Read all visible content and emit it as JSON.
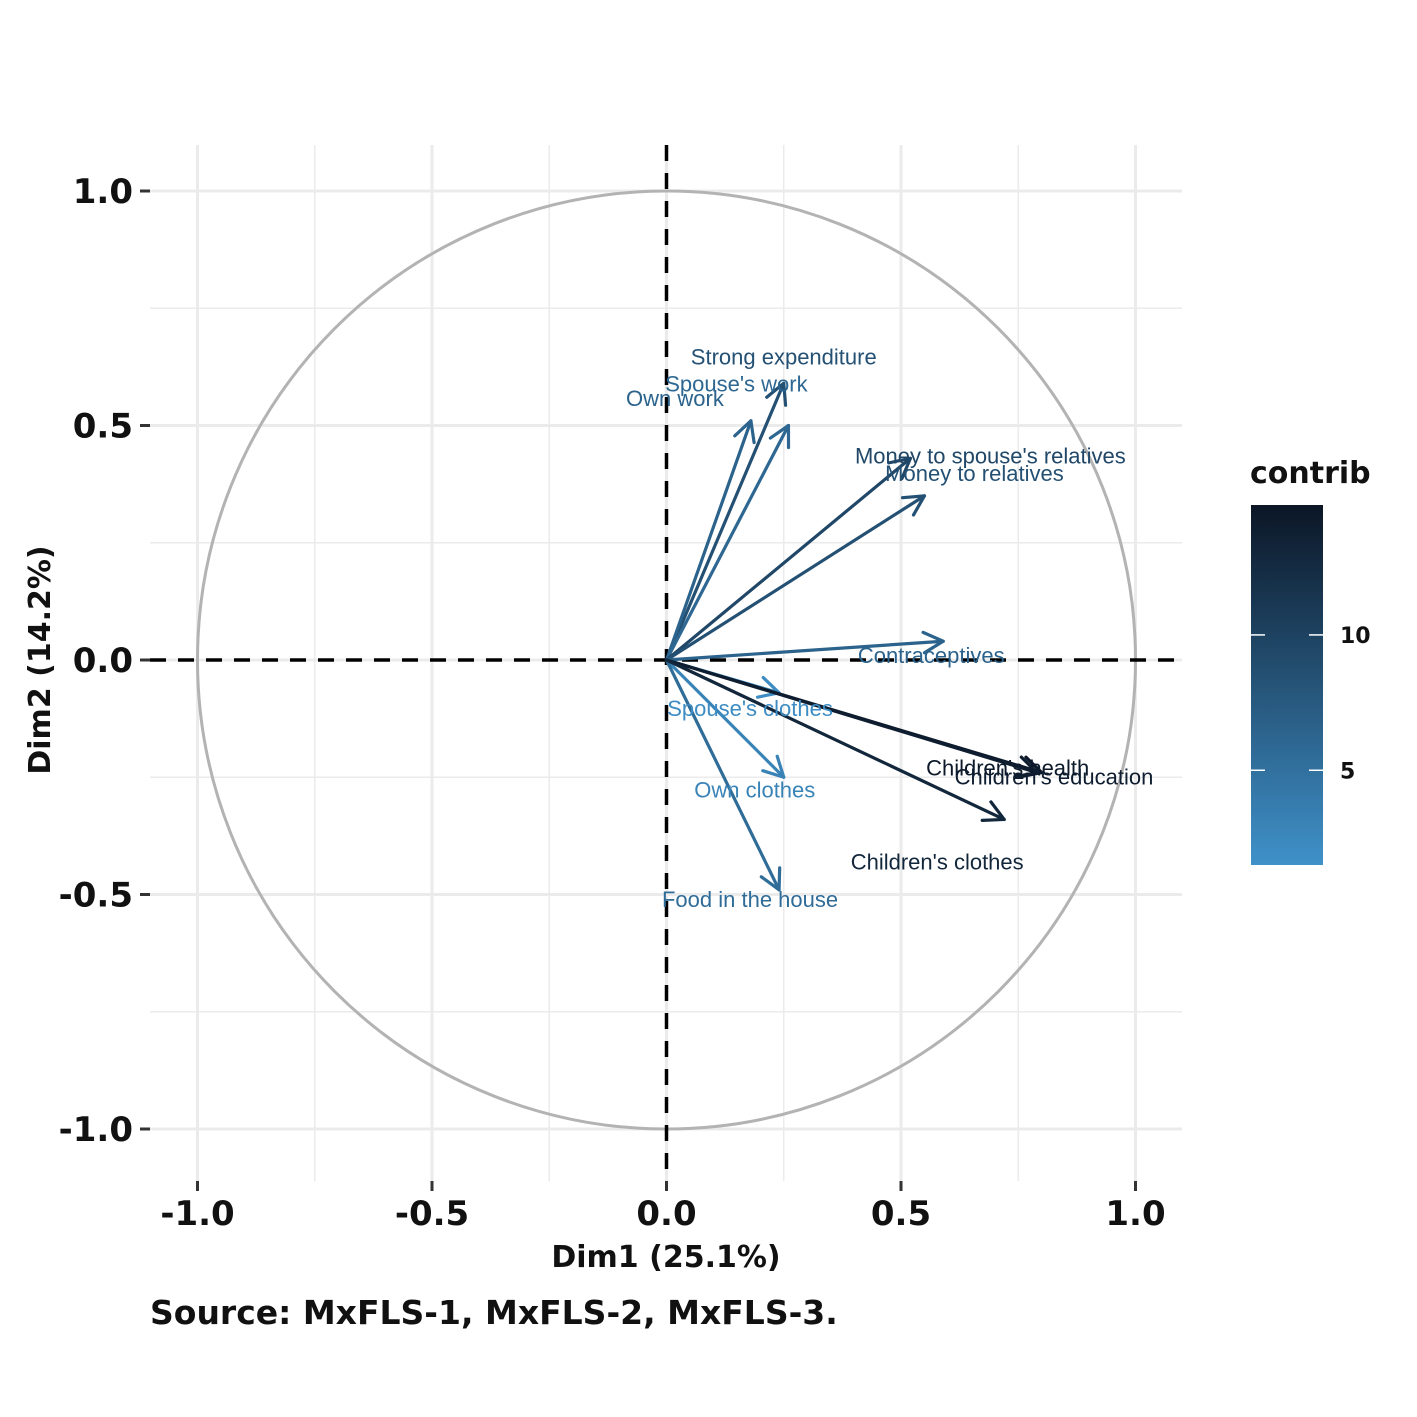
{
  "chart_data": {
    "type": "scatter",
    "subtype": "pca-variable-correlation-circle",
    "xlabel": "Dim1 (25.1%)",
    "ylabel": "Dim2 (14.2%)",
    "xlim": [
      -1.1,
      1.1
    ],
    "ylim": [
      -1.1,
      1.1
    ],
    "x_ticks": [
      "-1.0",
      "-0.5",
      "0.0",
      "0.5",
      "1.0"
    ],
    "y_ticks": [
      "1.0",
      "0.5",
      "0.0",
      "-0.5",
      "-1.0"
    ],
    "grid": true,
    "unit_circle": true,
    "caption": "Source: MxFLS-1, MxFLS-2, MxFLS-3.",
    "legend": {
      "title": "contrib",
      "placement": "right",
      "ticks": [
        "10",
        "5"
      ],
      "range": [
        1.5,
        14.8
      ],
      "colors": [
        "#3f91c9",
        "#0b1626"
      ]
    },
    "variables": [
      {
        "name": "Strong expenditure",
        "x": 0.25,
        "y": 0.59,
        "contrib": 8.5
      },
      {
        "name": "Own work",
        "x": 0.18,
        "y": 0.51,
        "contrib": 6.5
      },
      {
        "name": "Spouse's work",
        "x": 0.26,
        "y": 0.5,
        "contrib": 6.0
      },
      {
        "name": "Money to spouse's relatives",
        "x": 0.52,
        "y": 0.43,
        "contrib": 9.5
      },
      {
        "name": "Money to relatives",
        "x": 0.55,
        "y": 0.35,
        "contrib": 8.5
      },
      {
        "name": "Contraceptives",
        "x": 0.59,
        "y": 0.04,
        "contrib": 6.5
      },
      {
        "name": "Spouse's clothes",
        "x": 0.24,
        "y": -0.07,
        "contrib": 2.0
      },
      {
        "name": "Own clothes",
        "x": 0.25,
        "y": -0.25,
        "contrib": 3.0
      },
      {
        "name": "Food in the house",
        "x": 0.24,
        "y": -0.49,
        "contrib": 5.5
      },
      {
        "name": "Children's health",
        "x": 0.8,
        "y": -0.24,
        "contrib": 14.5
      },
      {
        "name": "Children's education",
        "x": 0.79,
        "y": -0.24,
        "contrib": 14.0
      },
      {
        "name": "Children's clothes",
        "x": 0.72,
        "y": -0.34,
        "contrib": 13.0
      }
    ]
  }
}
